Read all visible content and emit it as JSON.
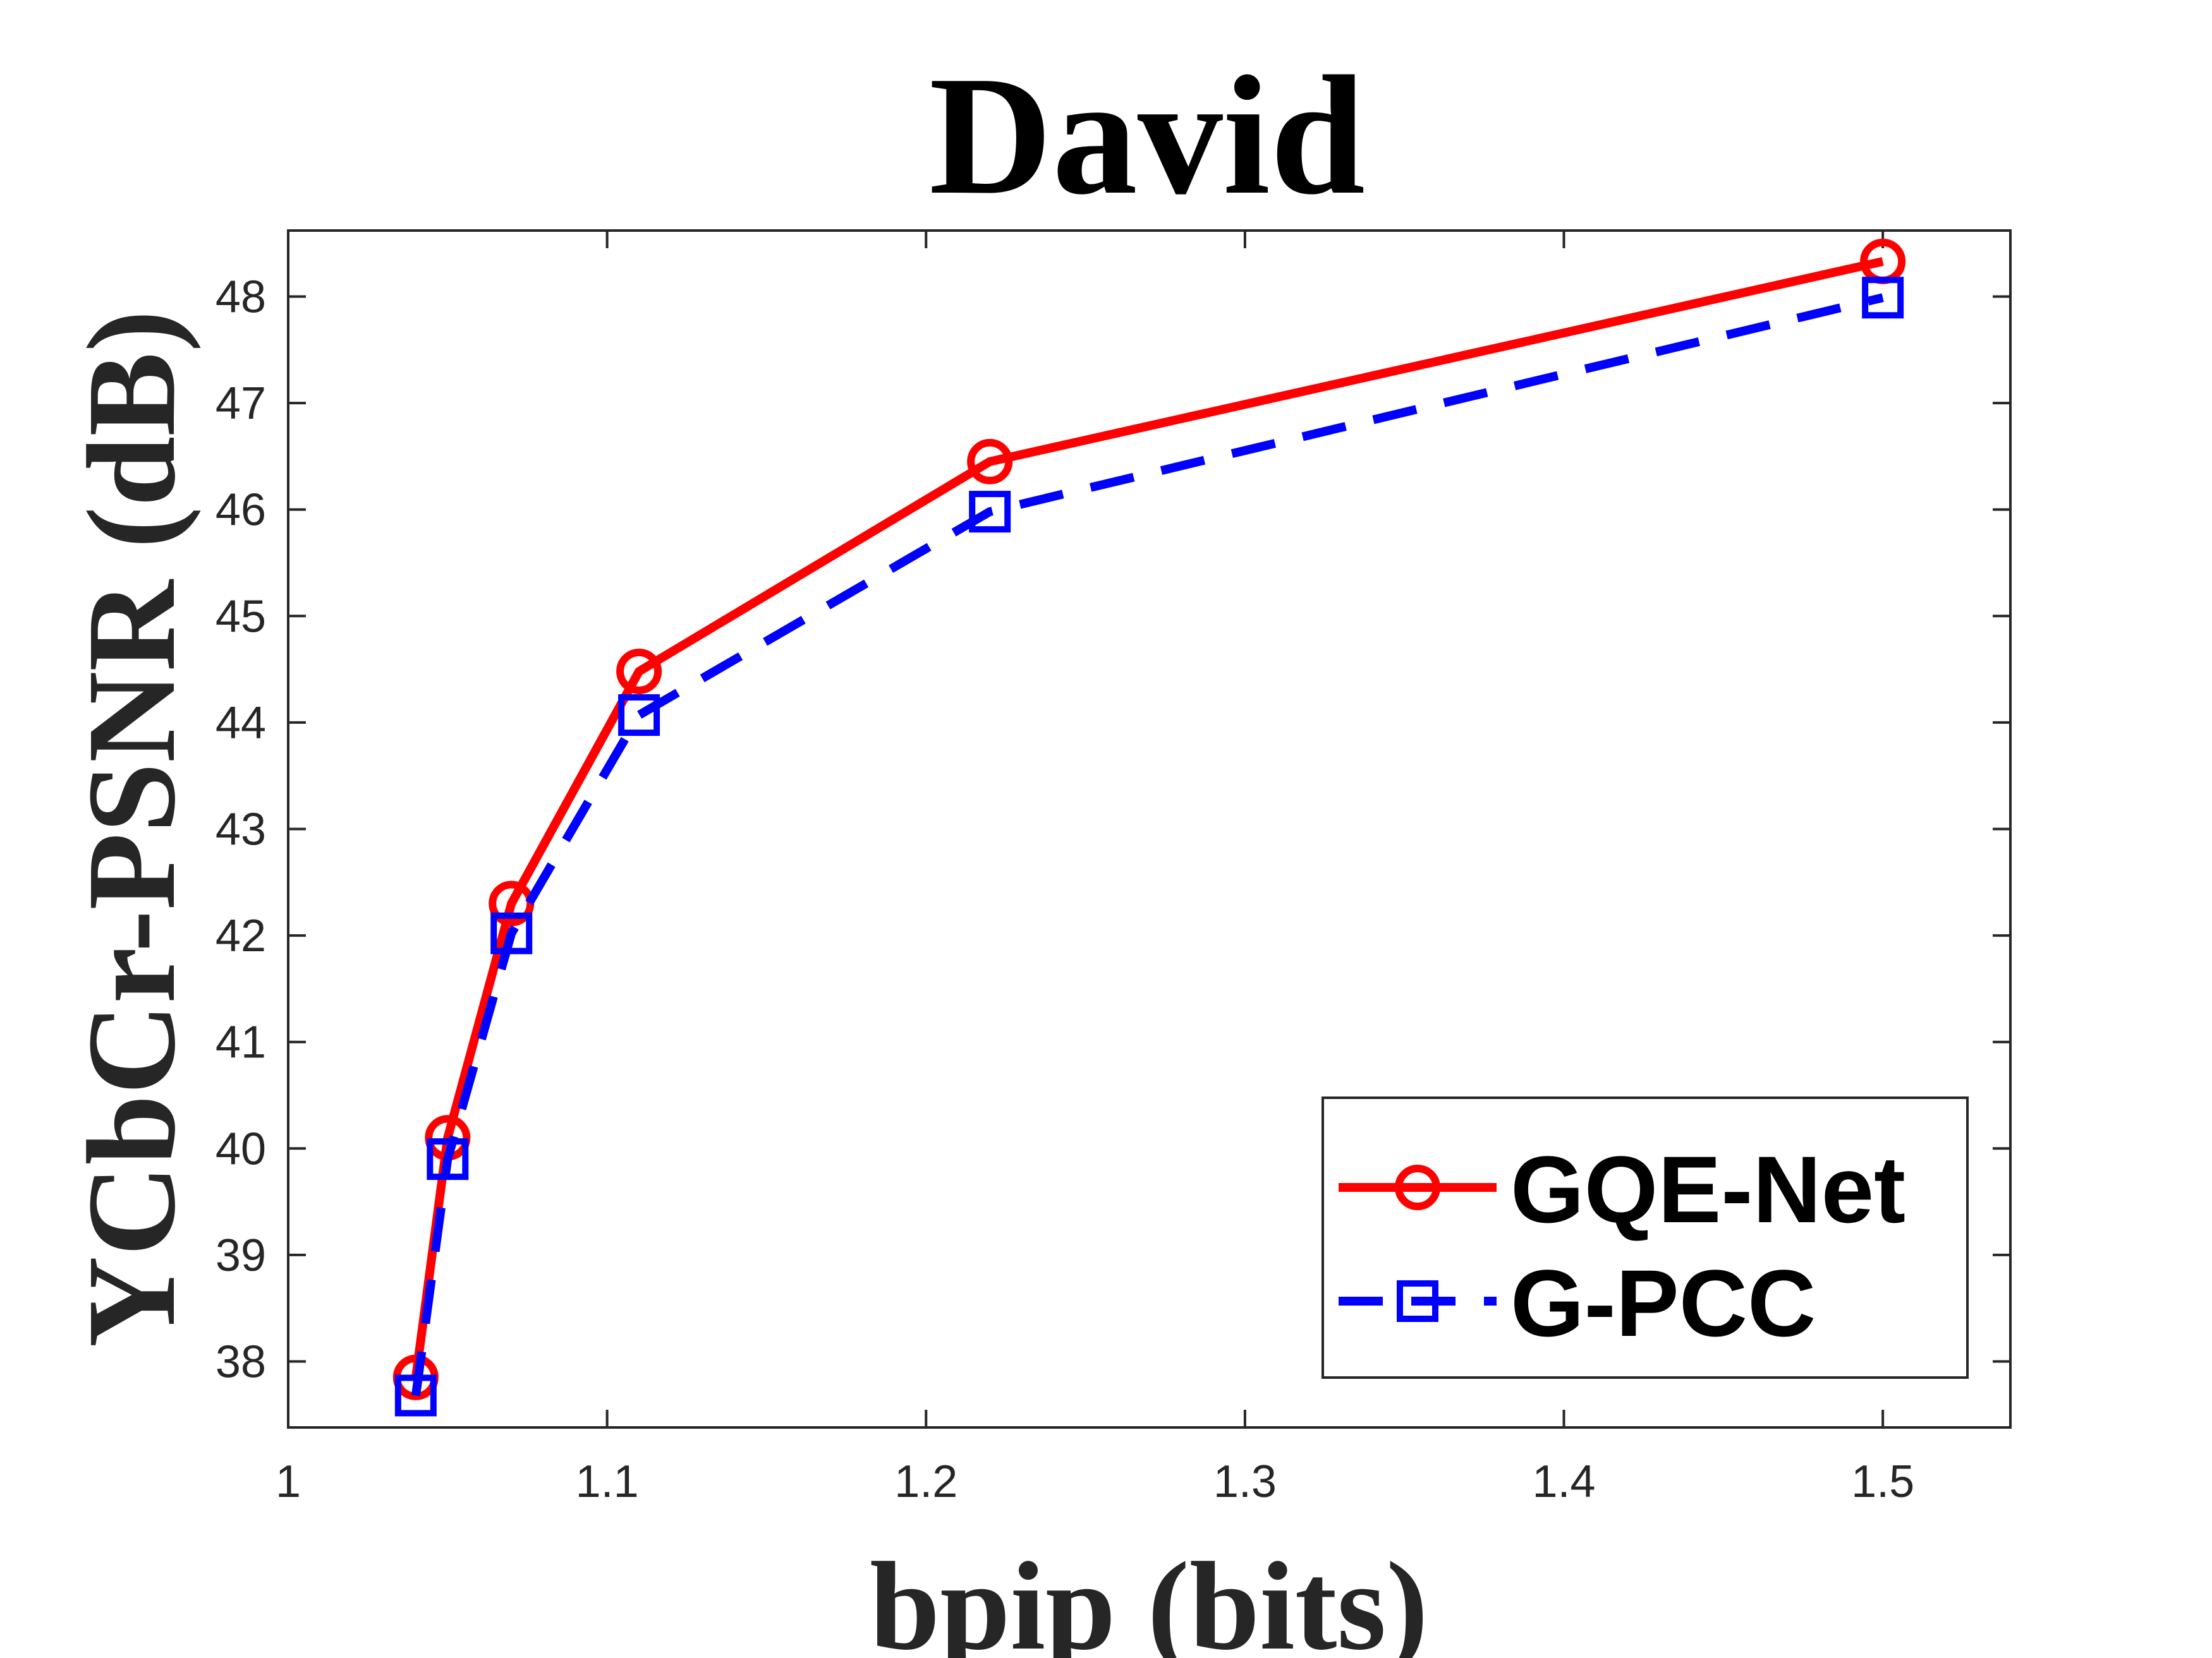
{
  "chart_data": {
    "type": "line",
    "title": "David",
    "xlabel": "bpip (bits)",
    "ylabel": "YCbCr-PSNR (dB)",
    "xlim": [
      1.0,
      1.54
    ],
    "ylim": [
      37.38,
      48.62
    ],
    "xticks": [
      1,
      1.1,
      1.2,
      1.3,
      1.4,
      1.5
    ],
    "xtick_labels": [
      "1",
      "1.1",
      "1.2",
      "1.3",
      "1.4",
      "1.5"
    ],
    "yticks": [
      38,
      39,
      40,
      41,
      42,
      43,
      44,
      45,
      46,
      47,
      48
    ],
    "ytick_labels": [
      "38",
      "39",
      "40",
      "41",
      "42",
      "43",
      "44",
      "45",
      "46",
      "47",
      "48"
    ],
    "grid": false,
    "legend_position": "bottom-right",
    "series": [
      {
        "name": "GQE-Net",
        "color": "#ff0000",
        "line_style": "solid",
        "marker": "circle",
        "x": [
          1.04,
          1.05,
          1.07,
          1.11,
          1.22,
          1.5
        ],
        "y": [
          37.85,
          40.1,
          42.3,
          44.48,
          46.45,
          48.33
        ]
      },
      {
        "name": "G-PCC",
        "color": "#0000ff",
        "line_style": "dashed",
        "marker": "square",
        "x": [
          1.04,
          1.05,
          1.07,
          1.11,
          1.22,
          1.5
        ],
        "y": [
          37.68,
          39.9,
          42.02,
          44.07,
          45.98,
          47.99
        ]
      }
    ]
  }
}
